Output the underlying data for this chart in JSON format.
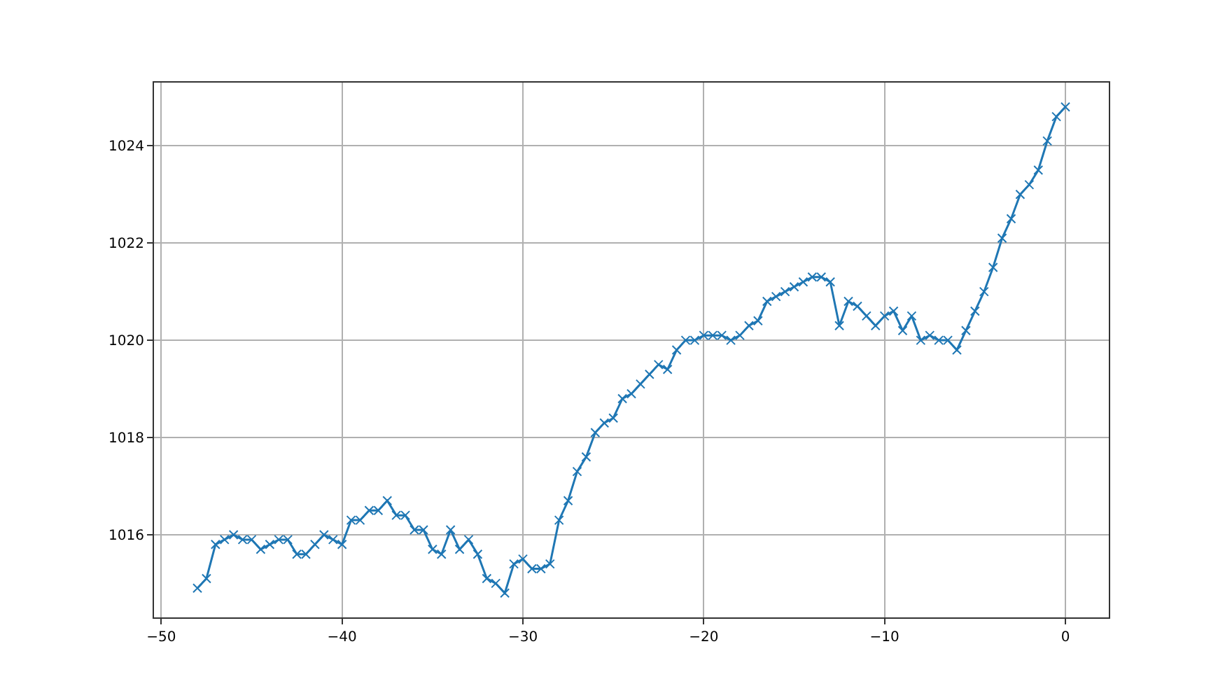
{
  "chart_data": {
    "type": "line",
    "x": [
      -48,
      -47.5,
      -47,
      -46.5,
      -46,
      -45.5,
      -45,
      -44.5,
      -44,
      -43.5,
      -43,
      -42.5,
      -42,
      -41.5,
      -41,
      -40.5,
      -40,
      -39.5,
      -39,
      -38.5,
      -38,
      -37.5,
      -37,
      -36.5,
      -36,
      -35.5,
      -35,
      -34.5,
      -34,
      -33.5,
      -33,
      -32.5,
      -32,
      -31.5,
      -31,
      -30.5,
      -30,
      -29.5,
      -29,
      -28.5,
      -28,
      -27.5,
      -27,
      -26.5,
      -26,
      -25.5,
      -25,
      -24.5,
      -24,
      -23.5,
      -23,
      -22.5,
      -22,
      -21.5,
      -21,
      -20.5,
      -20,
      -19.5,
      -19,
      -18.5,
      -18,
      -17.5,
      -17,
      -16.5,
      -16,
      -15.5,
      -15,
      -14.5,
      -14,
      -13.5,
      -13,
      -12.5,
      -12,
      -11.5,
      -11,
      -10.5,
      -10,
      -9.5,
      -9,
      -8.5,
      -8,
      -7.5,
      -7,
      -6.5,
      -6,
      -5.5,
      -5,
      -4.5,
      -4,
      -3.5,
      -3,
      -2.5,
      -2,
      -1.5,
      -1,
      -0.5,
      0
    ],
    "series": [
      {
        "color": "#1f77b4",
        "values": [
          1014.9,
          1015.1,
          1015.8,
          1015.9,
          1016.0,
          1015.9,
          1015.9,
          1015.7,
          1015.8,
          1015.9,
          1015.9,
          1015.6,
          1015.6,
          1015.8,
          1016.0,
          1015.9,
          1015.8,
          1016.3,
          1016.3,
          1016.5,
          1016.5,
          1016.7,
          1016.4,
          1016.4,
          1016.1,
          1016.1,
          1015.7,
          1015.6,
          1016.1,
          1015.7,
          1015.9,
          1015.6,
          1015.1,
          1015.0,
          1014.8,
          1015.4,
          1015.5,
          1015.3,
          1015.3,
          1015.4,
          1016.3,
          1016.7,
          1017.3,
          1017.6,
          1018.1,
          1018.3,
          1018.4,
          1018.8,
          1018.9,
          1019.1,
          1019.3,
          1019.5,
          1019.4,
          1019.8,
          1020.0,
          1020.0,
          1020.1,
          1020.1,
          1020.1,
          1020.0,
          1020.1,
          1020.3,
          1020.4,
          1020.8,
          1020.9,
          1021.0,
          1021.1,
          1021.2,
          1021.3,
          1021.3,
          1021.2,
          1020.3,
          1020.8,
          1020.7,
          1020.5,
          1020.3,
          1020.5,
          1020.6,
          1020.2,
          1020.5,
          1020.0,
          1020.1,
          1020.0,
          1020.0,
          1019.8,
          1020.2,
          1020.6,
          1021.0,
          1021.5,
          1022.1,
          1022.5,
          1023.0,
          1023.2,
          1023.5,
          1024.1,
          1024.6,
          1024.8
        ]
      }
    ],
    "xlim": [
      -50.4,
      2.4
    ],
    "xticks": [
      {
        "value": -50,
        "label": "−50"
      },
      {
        "value": -40,
        "label": "−40"
      },
      {
        "value": -30,
        "label": "−30"
      },
      {
        "value": -20,
        "label": "−20"
      },
      {
        "value": -10,
        "label": "−10"
      },
      0
    ],
    "ylim": [
      1014.3,
      1025.3
    ],
    "yticks": [
      1016,
      1018,
      1020,
      1022,
      1024
    ],
    "grid": true,
    "marker": "cross",
    "line_style": "solid",
    "legend": false
  }
}
